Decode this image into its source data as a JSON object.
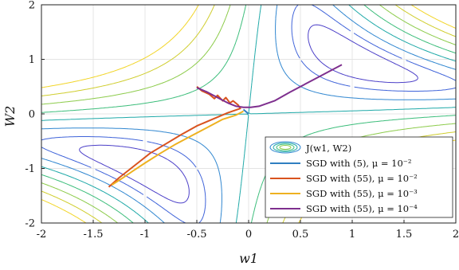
{
  "chart_data": {
    "type": "line",
    "xlabel": "w1",
    "ylabel": "W2",
    "xlim": [
      -2,
      2
    ],
    "ylim": [
      -2,
      2
    ],
    "xticks": [
      "-2",
      "-1.5",
      "-1",
      "-0.5",
      "0",
      "0.5",
      "1",
      "1.5",
      "2"
    ],
    "yticks": [
      "-2",
      "-1",
      "0",
      "1",
      "2"
    ],
    "grid": true,
    "legend_position": "bottom-right",
    "contour": {
      "name": "J(w1, W2)",
      "levels": [
        {
          "level": 0.03,
          "color": "#4b3fc8"
        },
        {
          "level": 0.07,
          "color": "#3f63d9"
        },
        {
          "level": 0.14,
          "color": "#2f86d0"
        },
        {
          "level": 0.25,
          "color": "#1fa9a8"
        },
        {
          "level": 0.4,
          "color": "#3bbd7a"
        },
        {
          "level": 0.6,
          "color": "#8ccb4a"
        },
        {
          "level": 0.85,
          "color": "#cfcd2c"
        },
        {
          "level": 1.15,
          "color": "#f2d528"
        }
      ]
    },
    "series": [
      {
        "name": "SGD with (5), μ = 10⁻²",
        "color": "#2f7fc1",
        "points": [
          [
            -0.05,
            0.08
          ],
          [
            0.0,
            0.0
          ]
        ]
      },
      {
        "name": "SGD with (55), μ = 10⁻²",
        "color": "#d9531e",
        "points": [
          [
            -0.5,
            0.5
          ],
          [
            -0.45,
            0.42
          ],
          [
            -0.38,
            0.36
          ],
          [
            -0.33,
            0.28
          ],
          [
            -0.3,
            0.34
          ],
          [
            -0.25,
            0.24
          ],
          [
            -0.22,
            0.3
          ],
          [
            -0.18,
            0.2
          ],
          [
            -0.15,
            0.24
          ],
          [
            -0.1,
            0.16
          ],
          [
            -0.08,
            0.1
          ],
          [
            -0.2,
            0.02
          ],
          [
            -0.35,
            -0.1
          ],
          [
            -0.5,
            -0.22
          ],
          [
            -0.65,
            -0.38
          ],
          [
            -0.8,
            -0.55
          ],
          [
            -0.95,
            -0.72
          ],
          [
            -1.05,
            -0.87
          ],
          [
            -1.15,
            -1.02
          ],
          [
            -1.25,
            -1.17
          ],
          [
            -1.35,
            -1.34
          ]
        ]
      },
      {
        "name": "SGD with (55), μ = 10⁻³",
        "color": "#eeb120",
        "points": [
          [
            -0.05,
            0.05
          ],
          [
            -0.12,
            -0.02
          ],
          [
            -0.25,
            -0.1
          ],
          [
            -0.4,
            -0.25
          ],
          [
            -0.55,
            -0.4
          ],
          [
            -0.7,
            -0.55
          ],
          [
            -0.85,
            -0.72
          ],
          [
            -1.0,
            -0.9
          ],
          [
            -1.12,
            -1.05
          ],
          [
            -1.22,
            -1.18
          ],
          [
            -1.32,
            -1.3
          ]
        ]
      },
      {
        "name": "SGD with (55), μ = 10⁻⁴",
        "color": "#7e2f8e",
        "points": [
          [
            -0.5,
            0.48
          ],
          [
            -0.4,
            0.4
          ],
          [
            -0.3,
            0.3
          ],
          [
            -0.2,
            0.2
          ],
          [
            -0.12,
            0.14
          ],
          [
            -0.05,
            0.12
          ],
          [
            0.02,
            0.12
          ],
          [
            0.1,
            0.14
          ],
          [
            0.25,
            0.24
          ],
          [
            0.4,
            0.4
          ],
          [
            0.55,
            0.55
          ],
          [
            0.7,
            0.7
          ],
          [
            0.9,
            0.9
          ]
        ]
      }
    ]
  },
  "legend": {
    "entries": [
      {
        "label": "J(w1, W2)"
      },
      {
        "label": "SGD with (5), μ = 10⁻²"
      },
      {
        "label": "SGD with (55), μ = 10⁻²"
      },
      {
        "label": "SGD with (55), μ = 10⁻³"
      },
      {
        "label": "SGD with (55), μ = 10⁻⁴"
      }
    ]
  }
}
